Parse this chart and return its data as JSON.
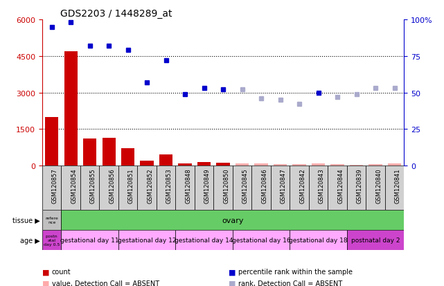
{
  "title": "GDS2203 / 1448289_at",
  "samples": [
    "GSM120857",
    "GSM120854",
    "GSM120855",
    "GSM120856",
    "GSM120851",
    "GSM120852",
    "GSM120853",
    "GSM120848",
    "GSM120849",
    "GSM120850",
    "GSM120845",
    "GSM120846",
    "GSM120847",
    "GSM120842",
    "GSM120843",
    "GSM120844",
    "GSM120839",
    "GSM120840",
    "GSM120841"
  ],
  "count_values": [
    2000,
    4700,
    1100,
    1150,
    700,
    200,
    450,
    80,
    150,
    120,
    100,
    100,
    60,
    50,
    80,
    60,
    40,
    50,
    80
  ],
  "count_absent": [
    false,
    false,
    false,
    false,
    false,
    false,
    false,
    false,
    false,
    false,
    true,
    true,
    true,
    true,
    true,
    true,
    true,
    true,
    true
  ],
  "rank_values": [
    95,
    98,
    82,
    82,
    79,
    57,
    72,
    49,
    53,
    52,
    52,
    46,
    45,
    42,
    50,
    47,
    49,
    53,
    53
  ],
  "rank_absent": [
    false,
    false,
    false,
    false,
    false,
    false,
    false,
    false,
    false,
    false,
    true,
    true,
    true,
    true,
    false,
    true,
    true,
    true,
    true
  ],
  "ylim_left": [
    0,
    6000
  ],
  "ylim_right": [
    0,
    100
  ],
  "yticks_left": [
    0,
    1500,
    3000,
    4500,
    6000
  ],
  "yticks_right": [
    0,
    25,
    50,
    75,
    100
  ],
  "bar_color_present": "#cc0000",
  "bar_color_absent": "#ffaaaa",
  "rank_color_present": "#0000cc",
  "rank_color_absent": "#aaaacc",
  "tissue_reference_label": "refere\nnce",
  "tissue_reference_color": "#c0c0c0",
  "tissue_ovary_label": "ovary",
  "tissue_ovary_color": "#66cc66",
  "age_groups": [
    {
      "label": "postn\natal\nday 0.5",
      "color": "#cc44cc",
      "start": 0,
      "end": 0
    },
    {
      "label": "gestational day 11",
      "color": "#ffaaff",
      "start": 1,
      "end": 3
    },
    {
      "label": "gestational day 12",
      "color": "#ffaaff",
      "start": 4,
      "end": 6
    },
    {
      "label": "gestational day 14",
      "color": "#ffaaff",
      "start": 7,
      "end": 9
    },
    {
      "label": "gestational day 16",
      "color": "#ffaaff",
      "start": 10,
      "end": 12
    },
    {
      "label": "gestational day 18",
      "color": "#ffaaff",
      "start": 13,
      "end": 15
    },
    {
      "label": "postnatal day 2",
      "color": "#cc44cc",
      "start": 16,
      "end": 18
    }
  ],
  "legend_items": [
    {
      "label": "count",
      "color": "#cc0000"
    },
    {
      "label": "percentile rank within the sample",
      "color": "#0000cc"
    },
    {
      "label": "value, Detection Call = ABSENT",
      "color": "#ffaaaa"
    },
    {
      "label": "rank, Detection Call = ABSENT",
      "color": "#aaaacc"
    }
  ],
  "left_axis_color": "#cc0000",
  "right_axis_color": "#0000cc",
  "bg_color": "#ffffff",
  "sample_box_color": "#d0d0d0"
}
